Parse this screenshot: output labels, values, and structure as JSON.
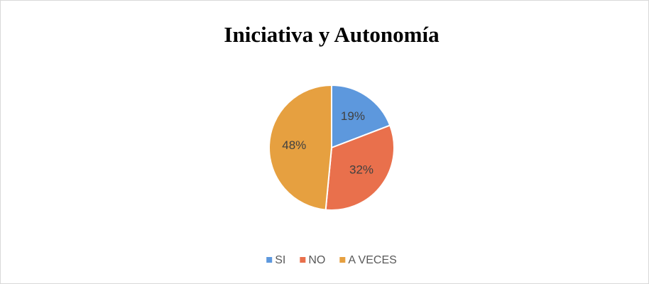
{
  "chart_data": {
    "type": "pie",
    "title": "Iniciativa y Autonomía",
    "categories": [
      "SI",
      "NO",
      "A VECES"
    ],
    "values": [
      19,
      32,
      48
    ],
    "value_labels": [
      "19%",
      "32%",
      "48%"
    ],
    "colors": [
      "#5d98dd",
      "#e9704c",
      "#e6a040"
    ],
    "legend": "bottom"
  }
}
